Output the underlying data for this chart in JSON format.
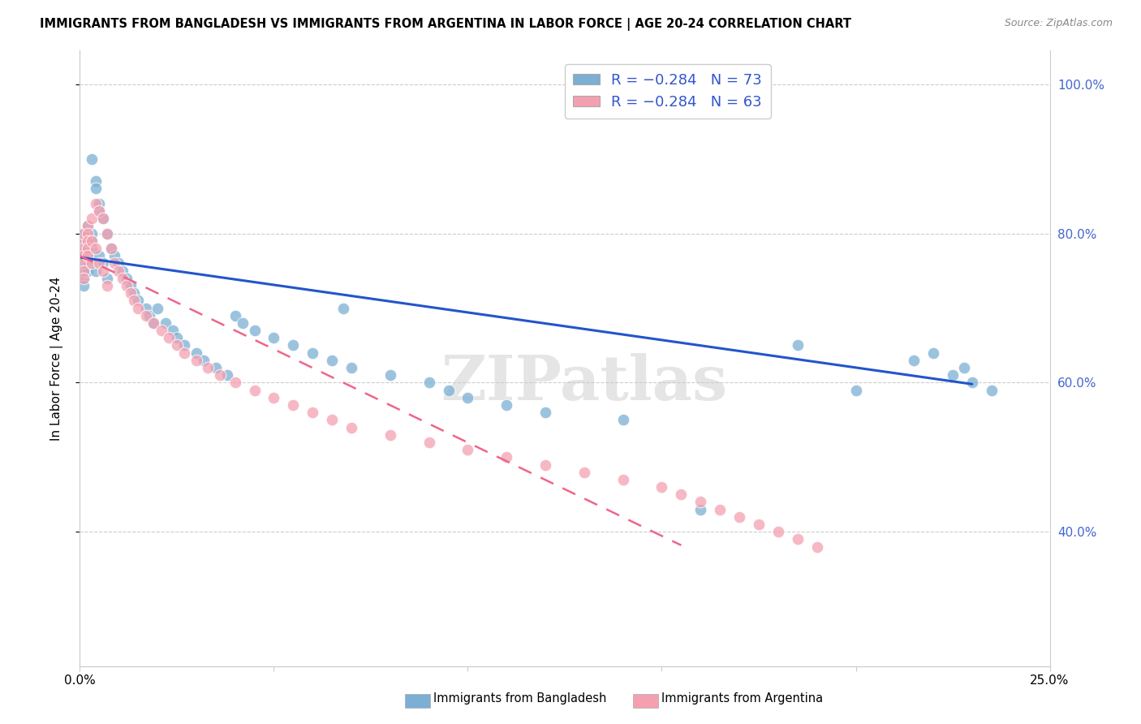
{
  "title": "IMMIGRANTS FROM BANGLADESH VS IMMIGRANTS FROM ARGENTINA IN LABOR FORCE | AGE 20-24 CORRELATION CHART",
  "source": "Source: ZipAtlas.com",
  "ylabel": "In Labor Force | Age 20-24",
  "color_bangladesh": "#7BAFD4",
  "color_argentina": "#F4A0B0",
  "color_trend_bangladesh": "#2255CC",
  "color_trend_argentina": "#EE6688",
  "watermark": "ZIPatlas",
  "xmin": 0.0,
  "xmax": 0.25,
  "ymin": 0.22,
  "ymax": 1.045,
  "yticks": [
    0.4,
    0.6,
    0.8,
    1.0
  ],
  "ytick_labels": [
    "40.0%",
    "60.0%",
    "80.0%",
    "100.0%"
  ],
  "xticks": [
    0.0,
    0.05,
    0.1,
    0.15,
    0.2,
    0.25
  ],
  "xtick_labels_show": [
    "0.0%",
    "",
    "",
    "",
    "",
    "25.0%"
  ],
  "bd_trend_x": [
    0.0,
    0.23
  ],
  "bd_trend_y": [
    0.768,
    0.598
  ],
  "arg_trend_x": [
    0.0,
    0.155
  ],
  "arg_trend_y": [
    0.77,
    0.382
  ],
  "bd_x": [
    0.001,
    0.001,
    0.001,
    0.001,
    0.001,
    0.001,
    0.001,
    0.001,
    0.002,
    0.002,
    0.002,
    0.002,
    0.002,
    0.002,
    0.003,
    0.003,
    0.003,
    0.003,
    0.004,
    0.004,
    0.004,
    0.005,
    0.005,
    0.005,
    0.006,
    0.006,
    0.007,
    0.007,
    0.008,
    0.009,
    0.01,
    0.011,
    0.012,
    0.013,
    0.014,
    0.015,
    0.017,
    0.018,
    0.019,
    0.02,
    0.022,
    0.024,
    0.025,
    0.027,
    0.03,
    0.032,
    0.035,
    0.038,
    0.04,
    0.042,
    0.045,
    0.05,
    0.055,
    0.06,
    0.065,
    0.068,
    0.07,
    0.08,
    0.09,
    0.095,
    0.1,
    0.11,
    0.12,
    0.14,
    0.16,
    0.185,
    0.2,
    0.215,
    0.22,
    0.225,
    0.228,
    0.23,
    0.235
  ],
  "bd_y": [
    0.78,
    0.79,
    0.8,
    0.77,
    0.76,
    0.75,
    0.74,
    0.73,
    0.79,
    0.78,
    0.77,
    0.76,
    0.75,
    0.81,
    0.8,
    0.79,
    0.78,
    0.9,
    0.87,
    0.86,
    0.75,
    0.84,
    0.83,
    0.77,
    0.82,
    0.76,
    0.8,
    0.74,
    0.78,
    0.77,
    0.76,
    0.75,
    0.74,
    0.73,
    0.72,
    0.71,
    0.7,
    0.69,
    0.68,
    0.7,
    0.68,
    0.67,
    0.66,
    0.65,
    0.64,
    0.63,
    0.62,
    0.61,
    0.69,
    0.68,
    0.67,
    0.66,
    0.65,
    0.64,
    0.63,
    0.7,
    0.62,
    0.61,
    0.6,
    0.59,
    0.58,
    0.57,
    0.56,
    0.55,
    0.43,
    0.65,
    0.59,
    0.63,
    0.64,
    0.61,
    0.62,
    0.6,
    0.59
  ],
  "arg_x": [
    0.001,
    0.001,
    0.001,
    0.001,
    0.001,
    0.001,
    0.001,
    0.002,
    0.002,
    0.002,
    0.002,
    0.002,
    0.003,
    0.003,
    0.003,
    0.004,
    0.004,
    0.005,
    0.005,
    0.006,
    0.006,
    0.007,
    0.007,
    0.008,
    0.009,
    0.01,
    0.011,
    0.012,
    0.013,
    0.014,
    0.015,
    0.017,
    0.019,
    0.021,
    0.023,
    0.025,
    0.027,
    0.03,
    0.033,
    0.036,
    0.04,
    0.045,
    0.05,
    0.055,
    0.06,
    0.065,
    0.07,
    0.08,
    0.09,
    0.1,
    0.11,
    0.12,
    0.13,
    0.14,
    0.15,
    0.155,
    0.16,
    0.165,
    0.17,
    0.175,
    0.18,
    0.185,
    0.19
  ],
  "arg_y": [
    0.79,
    0.8,
    0.78,
    0.77,
    0.76,
    0.75,
    0.74,
    0.81,
    0.8,
    0.79,
    0.78,
    0.77,
    0.82,
    0.79,
    0.76,
    0.84,
    0.78,
    0.83,
    0.76,
    0.82,
    0.75,
    0.8,
    0.73,
    0.78,
    0.76,
    0.75,
    0.74,
    0.73,
    0.72,
    0.71,
    0.7,
    0.69,
    0.68,
    0.67,
    0.66,
    0.65,
    0.64,
    0.63,
    0.62,
    0.61,
    0.6,
    0.59,
    0.58,
    0.57,
    0.56,
    0.55,
    0.54,
    0.53,
    0.52,
    0.51,
    0.5,
    0.49,
    0.48,
    0.47,
    0.46,
    0.45,
    0.44,
    0.43,
    0.42,
    0.41,
    0.4,
    0.39,
    0.38
  ]
}
